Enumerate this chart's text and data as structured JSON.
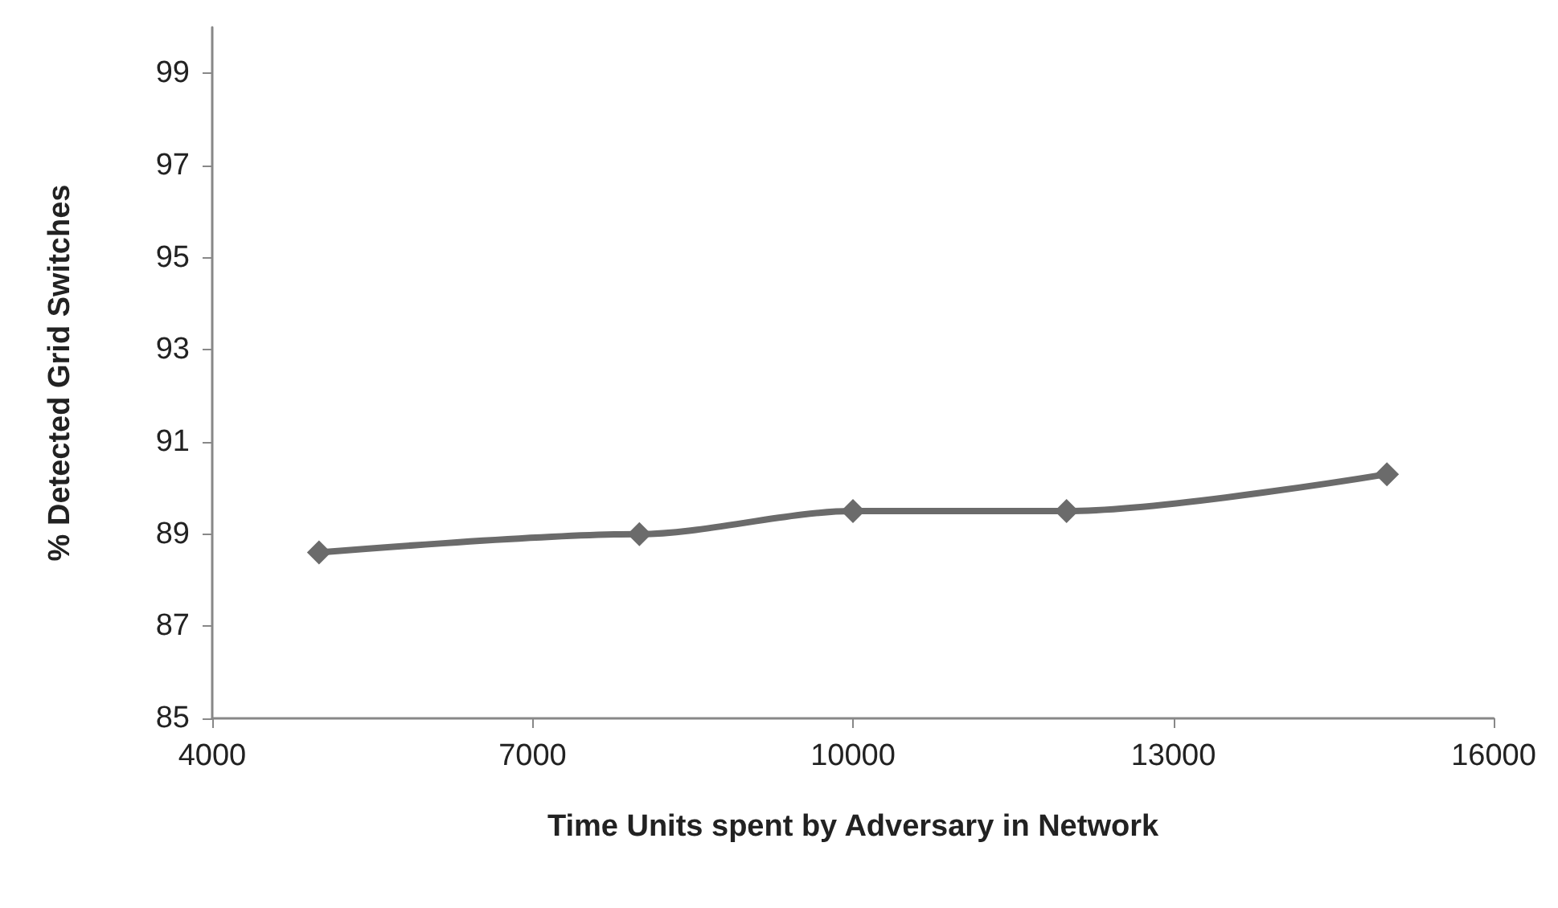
{
  "chart_data": {
    "type": "line",
    "xlabel": "Time Units spent by Adversary in Network",
    "ylabel": "% Detected Grid Switches",
    "x": [
      5000,
      8000,
      10000,
      12000,
      15000
    ],
    "series": [
      {
        "color": "#6b6b6b",
        "values": [
          88.6,
          89.0,
          89.5,
          89.5,
          90.3
        ]
      }
    ],
    "xlim": [
      4000,
      16000
    ],
    "xticks": [
      4000,
      7000,
      10000,
      13000,
      16000
    ],
    "ylim": [
      85,
      100
    ],
    "yticks": [
      85,
      87,
      89,
      91,
      93,
      95,
      97,
      99
    ],
    "grid": false,
    "marker": "diamond",
    "line_style": "solid"
  }
}
